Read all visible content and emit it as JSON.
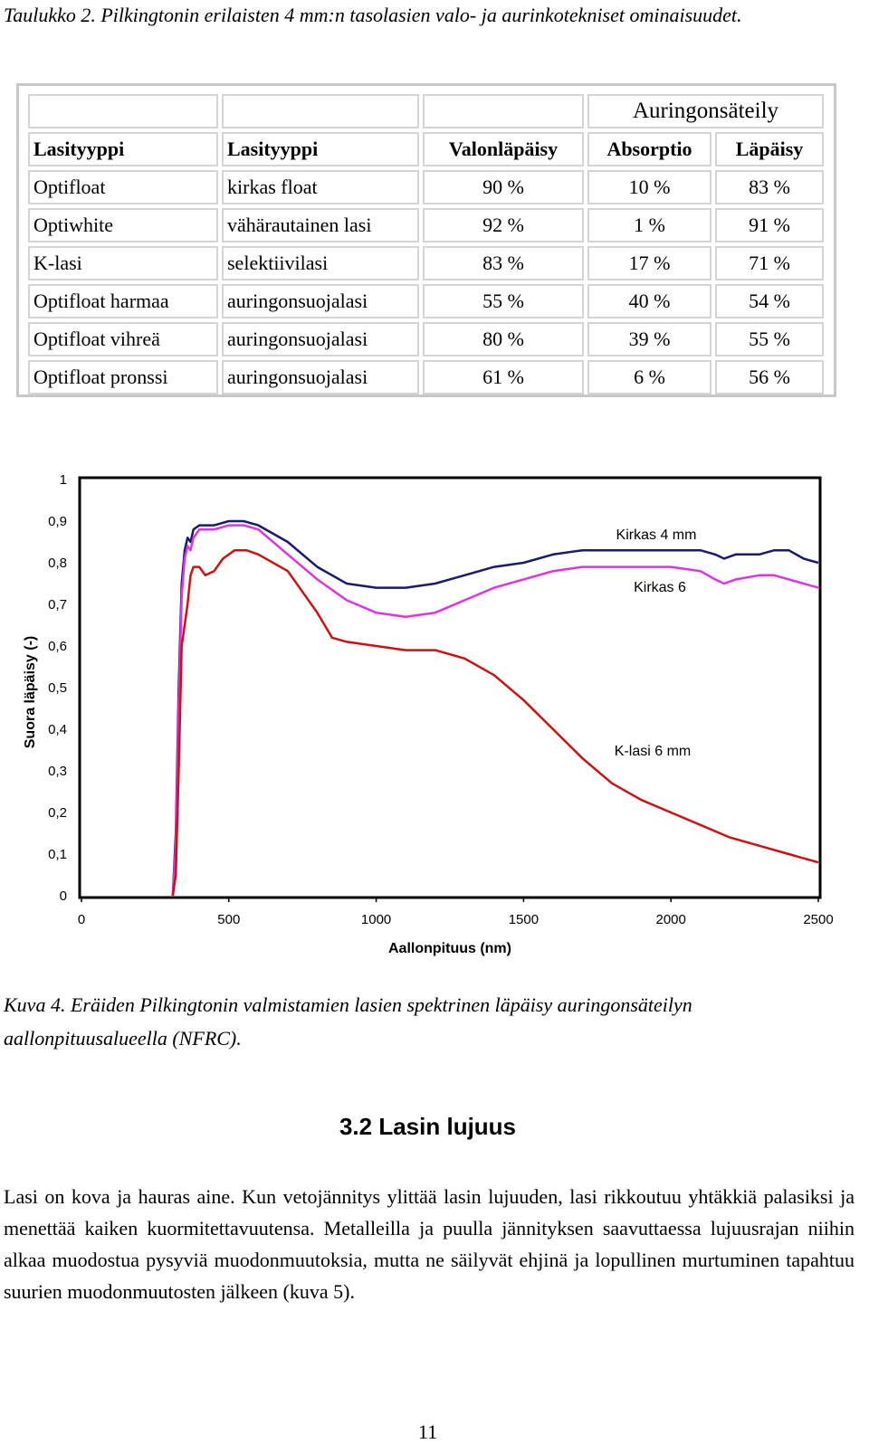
{
  "table_caption": "Taulukko 2. Pilkingtonin erilaisten 4 mm:n tasolasien valo- ja aurinkotekniset ominaisuudet.",
  "table": {
    "super_header": "Auringonsäteily",
    "headers": [
      "Lasityyppi",
      "Lasityyppi",
      "Valonläpäisy",
      "Absorptio",
      "Läpäisy"
    ],
    "rows": [
      [
        "Optifloat",
        "kirkas float",
        "90 %",
        "10 %",
        "83 %"
      ],
      [
        "Optiwhite",
        "vähärautainen lasi",
        "92 %",
        "1 %",
        "91 %"
      ],
      [
        "K-lasi",
        "selektiivilasi",
        "83 %",
        "17 %",
        "71 %"
      ],
      [
        "Optifloat harmaa",
        "auringonsuojalasi",
        "55 %",
        "40 %",
        "54 %"
      ],
      [
        "Optifloat vihreä",
        "auringonsuojalasi",
        "80 %",
        "39 %",
        "55 %"
      ],
      [
        "Optifloat pronssi",
        "auringonsuojalasi",
        "61 %",
        "6 %",
        "56 %"
      ]
    ]
  },
  "chart_data": {
    "type": "line",
    "xlabel": "Aallonpituus (nm)",
    "ylabel": "Suora läpäisy (-)",
    "xlim": [
      0,
      2500
    ],
    "ylim": [
      0,
      1
    ],
    "xticks": [
      "0",
      "500",
      "1000",
      "1500",
      "2000",
      "2500"
    ],
    "yticks": [
      "0",
      "0,1",
      "0,2",
      "0,3",
      "0,4",
      "0,5",
      "0,6",
      "0,7",
      "0,8",
      "0,9",
      "1"
    ],
    "grid": false,
    "series": [
      {
        "name": "Kirkas 4 mm",
        "color": "#1a1a6e",
        "points": [
          [
            310,
            0
          ],
          [
            320,
            0.15
          ],
          [
            330,
            0.5
          ],
          [
            340,
            0.75
          ],
          [
            350,
            0.83
          ],
          [
            360,
            0.86
          ],
          [
            370,
            0.85
          ],
          [
            380,
            0.88
          ],
          [
            400,
            0.89
          ],
          [
            450,
            0.89
          ],
          [
            500,
            0.9
          ],
          [
            550,
            0.9
          ],
          [
            600,
            0.89
          ],
          [
            700,
            0.85
          ],
          [
            800,
            0.79
          ],
          [
            900,
            0.75
          ],
          [
            1000,
            0.74
          ],
          [
            1100,
            0.74
          ],
          [
            1200,
            0.75
          ],
          [
            1300,
            0.77
          ],
          [
            1400,
            0.79
          ],
          [
            1500,
            0.8
          ],
          [
            1600,
            0.82
          ],
          [
            1700,
            0.83
          ],
          [
            1800,
            0.83
          ],
          [
            1900,
            0.83
          ],
          [
            2000,
            0.83
          ],
          [
            2100,
            0.83
          ],
          [
            2150,
            0.82
          ],
          [
            2180,
            0.81
          ],
          [
            2220,
            0.82
          ],
          [
            2300,
            0.82
          ],
          [
            2350,
            0.83
          ],
          [
            2400,
            0.83
          ],
          [
            2450,
            0.81
          ],
          [
            2500,
            0.8
          ]
        ]
      },
      {
        "name": "Kirkas 6",
        "color": "#e033e0",
        "points": [
          [
            310,
            0
          ],
          [
            320,
            0.12
          ],
          [
            330,
            0.45
          ],
          [
            340,
            0.72
          ],
          [
            350,
            0.81
          ],
          [
            360,
            0.84
          ],
          [
            370,
            0.83
          ],
          [
            380,
            0.86
          ],
          [
            400,
            0.88
          ],
          [
            450,
            0.88
          ],
          [
            500,
            0.89
          ],
          [
            550,
            0.89
          ],
          [
            600,
            0.88
          ],
          [
            700,
            0.82
          ],
          [
            800,
            0.76
          ],
          [
            900,
            0.71
          ],
          [
            1000,
            0.68
          ],
          [
            1100,
            0.67
          ],
          [
            1200,
            0.68
          ],
          [
            1300,
            0.71
          ],
          [
            1400,
            0.74
          ],
          [
            1500,
            0.76
          ],
          [
            1600,
            0.78
          ],
          [
            1700,
            0.79
          ],
          [
            1800,
            0.79
          ],
          [
            1900,
            0.79
          ],
          [
            2000,
            0.79
          ],
          [
            2100,
            0.78
          ],
          [
            2150,
            0.76
          ],
          [
            2180,
            0.75
          ],
          [
            2220,
            0.76
          ],
          [
            2300,
            0.77
          ],
          [
            2350,
            0.77
          ],
          [
            2400,
            0.76
          ],
          [
            2450,
            0.75
          ],
          [
            2500,
            0.74
          ]
        ]
      },
      {
        "name": "K-lasi 6 mm",
        "color": "#cc1111",
        "points": [
          [
            310,
            0
          ],
          [
            320,
            0.05
          ],
          [
            330,
            0.3
          ],
          [
            340,
            0.6
          ],
          [
            350,
            0.65
          ],
          [
            360,
            0.7
          ],
          [
            370,
            0.77
          ],
          [
            380,
            0.79
          ],
          [
            400,
            0.79
          ],
          [
            420,
            0.77
          ],
          [
            450,
            0.78
          ],
          [
            480,
            0.81
          ],
          [
            520,
            0.83
          ],
          [
            560,
            0.83
          ],
          [
            600,
            0.82
          ],
          [
            700,
            0.78
          ],
          [
            800,
            0.68
          ],
          [
            850,
            0.62
          ],
          [
            900,
            0.61
          ],
          [
            1000,
            0.6
          ],
          [
            1100,
            0.59
          ],
          [
            1200,
            0.59
          ],
          [
            1300,
            0.57
          ],
          [
            1400,
            0.53
          ],
          [
            1500,
            0.47
          ],
          [
            1600,
            0.4
          ],
          [
            1700,
            0.33
          ],
          [
            1800,
            0.27
          ],
          [
            1900,
            0.23
          ],
          [
            2000,
            0.2
          ],
          [
            2100,
            0.17
          ],
          [
            2200,
            0.14
          ],
          [
            2300,
            0.12
          ],
          [
            2400,
            0.1
          ],
          [
            2500,
            0.08
          ]
        ]
      }
    ],
    "annotations": [
      "Kirkas 4 mm",
      "Kirkas 6",
      "K-lasi 6 mm"
    ]
  },
  "figure_caption": "Kuva 4. Eräiden Pilkingtonin valmistamien lasien spektrinen läpäisy auringonsäteilyn aallonpituusalueella (NFRC).",
  "section_heading": "3.2  Lasin lujuus",
  "paragraph": "Lasi on kova ja hauras aine. Kun vetojännitys ylittää lasin lujuuden, lasi rikkoutuu yhtäkkiä palasiksi ja menettää kaiken kuormitettavuutensa. Metalleilla ja puulla jännityksen saavuttaessa lujuusrajan niihin alkaa muodostua pysyviä muodonmuutoksia, mutta ne säilyvät ehjinä ja lopullinen murtuminen tapahtuu suurien muodonmuutosten jälkeen (kuva 5).",
  "page_number": "11"
}
